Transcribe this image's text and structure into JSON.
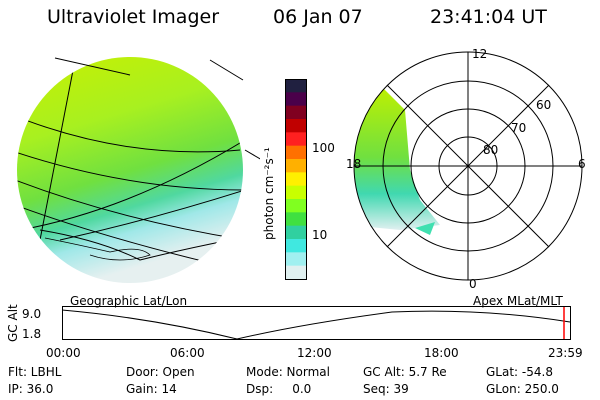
{
  "header": {
    "title": "Ultraviolet Imager",
    "date": "06 Jan 07",
    "time": "23:41:04 UT"
  },
  "colorbar": {
    "label": "photon cm⁻²s⁻¹",
    "ticks": [
      "100",
      "10"
    ],
    "colors": [
      "#202040",
      "#4a004a",
      "#800020",
      "#c00000",
      "#ff2020",
      "#ff7000",
      "#ffb000",
      "#fff000",
      "#c8ff00",
      "#80ff20",
      "#40e040",
      "#30d0a0",
      "#40e8e0",
      "#a0f0f0",
      "#e0f0f0"
    ]
  },
  "geographic_panel": {
    "label": "Geographic Lat/Lon"
  },
  "polar_panel": {
    "label": "Apex MLat/MLT",
    "mlt_labels": [
      "12",
      "18",
      "6",
      "0"
    ],
    "lat_labels": [
      "60",
      "70",
      "80"
    ]
  },
  "altitude_plot": {
    "ylabel": "GC Alt",
    "yticks": [
      "9.0",
      "1.8"
    ],
    "xticks": [
      "00:00",
      "06:00",
      "12:00",
      "18:00",
      "23:59"
    ]
  },
  "info": {
    "filter": "Flt: LBHL",
    "ip": "IP: 36.0",
    "door": "Door: Open",
    "gain": "Gain: 14",
    "mode": "Mode: Normal",
    "dsp": "Dsp:     0.0",
    "gc_alt": "GC Alt: 5.7 Re",
    "seq": "Seq: 39",
    "glat": "GLat: -54.8",
    "glon": "GLon: 250.0"
  }
}
